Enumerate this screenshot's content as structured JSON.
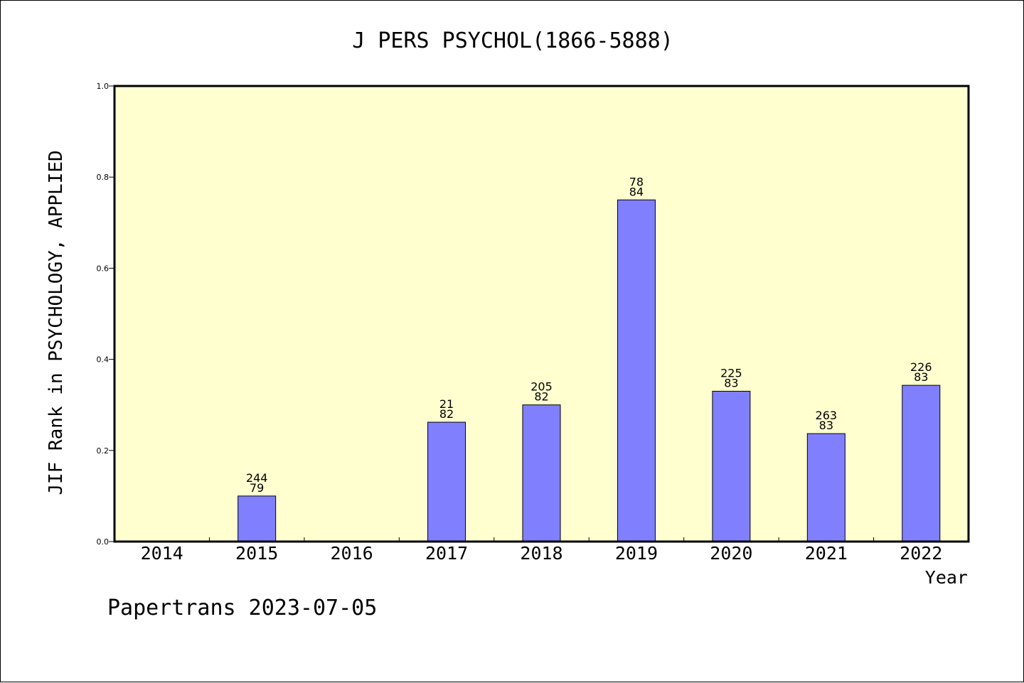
{
  "chart_data": {
    "type": "bar",
    "title": "J PERS PSYCHOL(1866-5888)",
    "xlabel": "Year",
    "ylabel": "JIF Rank in PSYCHOLOGY, APPLIED",
    "categories": [
      "2014",
      "2015",
      "2016",
      "2017",
      "2018",
      "2019",
      "2020",
      "2021",
      "2022"
    ],
    "values": [
      null,
      0.1,
      null,
      0.262,
      0.3,
      0.75,
      0.33,
      0.237,
      0.343
    ],
    "bar_labels": [
      null,
      [
        "244",
        "79"
      ],
      null,
      [
        "21",
        "82"
      ],
      [
        "205",
        "82"
      ],
      [
        "78",
        "84"
      ],
      [
        "225",
        "83"
      ],
      [
        "263",
        "83"
      ],
      [
        "226",
        "83"
      ]
    ],
    "ylim": [
      0.0,
      1.0
    ],
    "yticks": [
      "0.0",
      "0.2",
      "0.4",
      "0.6",
      "0.8",
      "1.0"
    ],
    "grid": false,
    "plot_background": "#ffffd0",
    "bar_color": "#8080ff"
  },
  "footer": {
    "watermark": "Papertrans 2023-07-05"
  }
}
